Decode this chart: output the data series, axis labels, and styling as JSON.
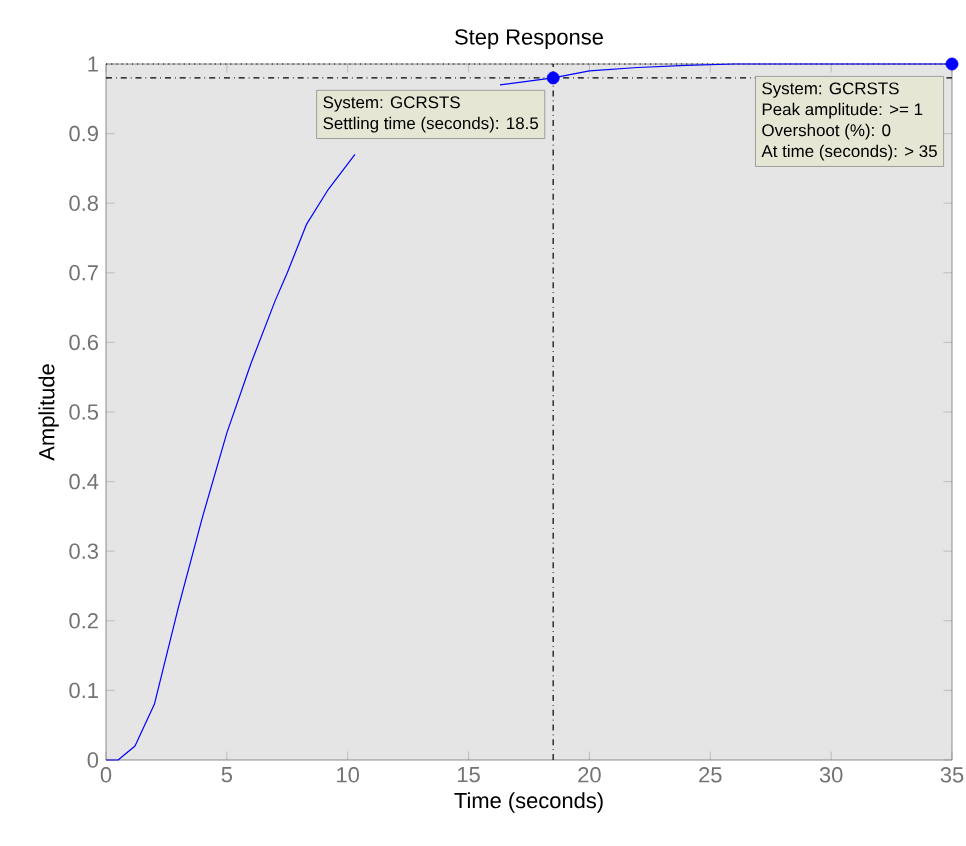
{
  "chart_data": {
    "type": "line",
    "title": "Step Response",
    "xlabel": "Time (seconds)",
    "ylabel": "Amplitude",
    "x": [
      0,
      0.5,
      1.2,
      2,
      3,
      4,
      5,
      6,
      7,
      7.5,
      8.3,
      9.2,
      10.3,
      12,
      16.3,
      18.5,
      20,
      22,
      24,
      26,
      30,
      35
    ],
    "series": [
      {
        "color": "#0000ff",
        "values": [
          0,
          0,
          0.02,
          0.08,
          0.22,
          0.35,
          0.47,
          0.57,
          0.66,
          0.7,
          0.77,
          0.82,
          0.87,
          null,
          0.97,
          0.98,
          0.99,
          0.995,
          0.998,
          1,
          1,
          1
        ]
      },
      {
        "type": "scatter",
        "color": "#0000ff",
        "marker": "circle",
        "x": [
          18.5,
          35
        ],
        "values": [
          0.98,
          1
        ]
      }
    ],
    "xlim": [
      0,
      35
    ],
    "ylim": [
      0,
      1
    ],
    "xticks": [
      0,
      5,
      10,
      15,
      20,
      25,
      30,
      35
    ],
    "yticks": [
      0,
      0.1,
      0.2,
      0.3,
      0.4,
      0.5,
      0.6,
      0.7,
      0.8,
      0.9,
      1
    ],
    "grid": false,
    "legend": false,
    "line_style": "solid",
    "ref_lines": [
      {
        "axis": "y",
        "value": 1,
        "color": "#000000",
        "line_style": "dotted"
      },
      {
        "axis": "y",
        "value": 0.98,
        "color": "#000000",
        "line_style": "dashdot"
      },
      {
        "axis": "x",
        "value": 18.5,
        "color": "#000000",
        "line_style": "dashdot"
      }
    ],
    "annotations": [
      "System: GCRSTS",
      "Settling time (seconds): 18.5",
      "System: GCRSTS",
      "Peak amplitude: >= 1",
      "Overshoot (%): 0",
      "At time (seconds): > 35"
    ]
  }
}
